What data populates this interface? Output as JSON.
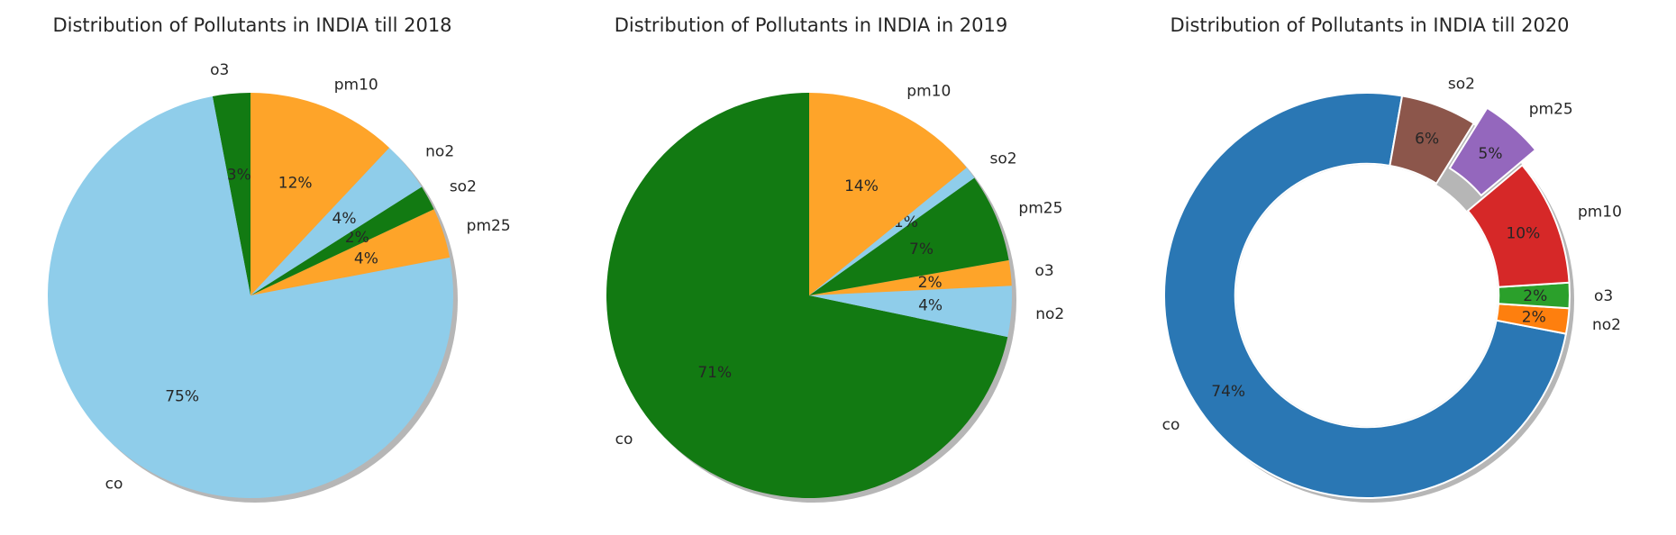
{
  "chart_data": [
    {
      "type": "pie",
      "title": "Distribution of Pollutants in INDIA till 2018",
      "start_angle": 90,
      "shadow": true,
      "donut": false,
      "slices": [
        {
          "label": "o3",
          "value": 3,
          "pct_label": "3%",
          "color": "#127a12"
        },
        {
          "label": "co",
          "value": 75,
          "pct_label": "75%",
          "color": "#8fcdea"
        },
        {
          "label": "pm25",
          "value": 4,
          "pct_label": "4%",
          "color": "#fea429"
        },
        {
          "label": "so2",
          "value": 2,
          "pct_label": "2%",
          "color": "#127a12"
        },
        {
          "label": "no2",
          "value": 4,
          "pct_label": "4%",
          "color": "#8fcdea"
        },
        {
          "label": "pm10",
          "value": 12,
          "pct_label": "12%",
          "color": "#fea429"
        }
      ]
    },
    {
      "type": "pie",
      "title": "Distribution of Pollutants in INDIA in 2019",
      "start_angle": 90,
      "shadow": true,
      "donut": false,
      "slices": [
        {
          "label": "co",
          "value": 71,
          "pct_label": "71%",
          "color": "#127a12"
        },
        {
          "label": "no2",
          "value": 4,
          "pct_label": "4%",
          "color": "#8fcdea"
        },
        {
          "label": "o3",
          "value": 2,
          "pct_label": "2%",
          "color": "#fea429"
        },
        {
          "label": "pm25",
          "value": 7,
          "pct_label": "7%",
          "color": "#127a12"
        },
        {
          "label": "so2",
          "value": 1,
          "pct_label": "1%",
          "color": "#8fcdea"
        },
        {
          "label": "pm10",
          "value": 14,
          "pct_label": "14%",
          "color": "#fea429"
        }
      ]
    },
    {
      "type": "pie",
      "title": "Distribution of Pollutants in INDIA till 2020",
      "start_angle": 80,
      "shadow": true,
      "donut": true,
      "exploded": "pm25",
      "slices": [
        {
          "label": "co",
          "value": 74,
          "pct_label": "74%",
          "color": "#2a77b4"
        },
        {
          "label": "no2",
          "value": 2,
          "pct_label": "2%",
          "color": "#fe7f0e"
        },
        {
          "label": "o3",
          "value": 2,
          "pct_label": "2%",
          "color": "#2ba02b"
        },
        {
          "label": "pm10",
          "value": 10,
          "pct_label": "10%",
          "color": "#d62828"
        },
        {
          "label": "pm25",
          "value": 5,
          "pct_label": "5%",
          "color": "#9467bd"
        },
        {
          "label": "so2",
          "value": 6,
          "pct_label": "6%",
          "color": "#8c564b"
        }
      ]
    }
  ]
}
